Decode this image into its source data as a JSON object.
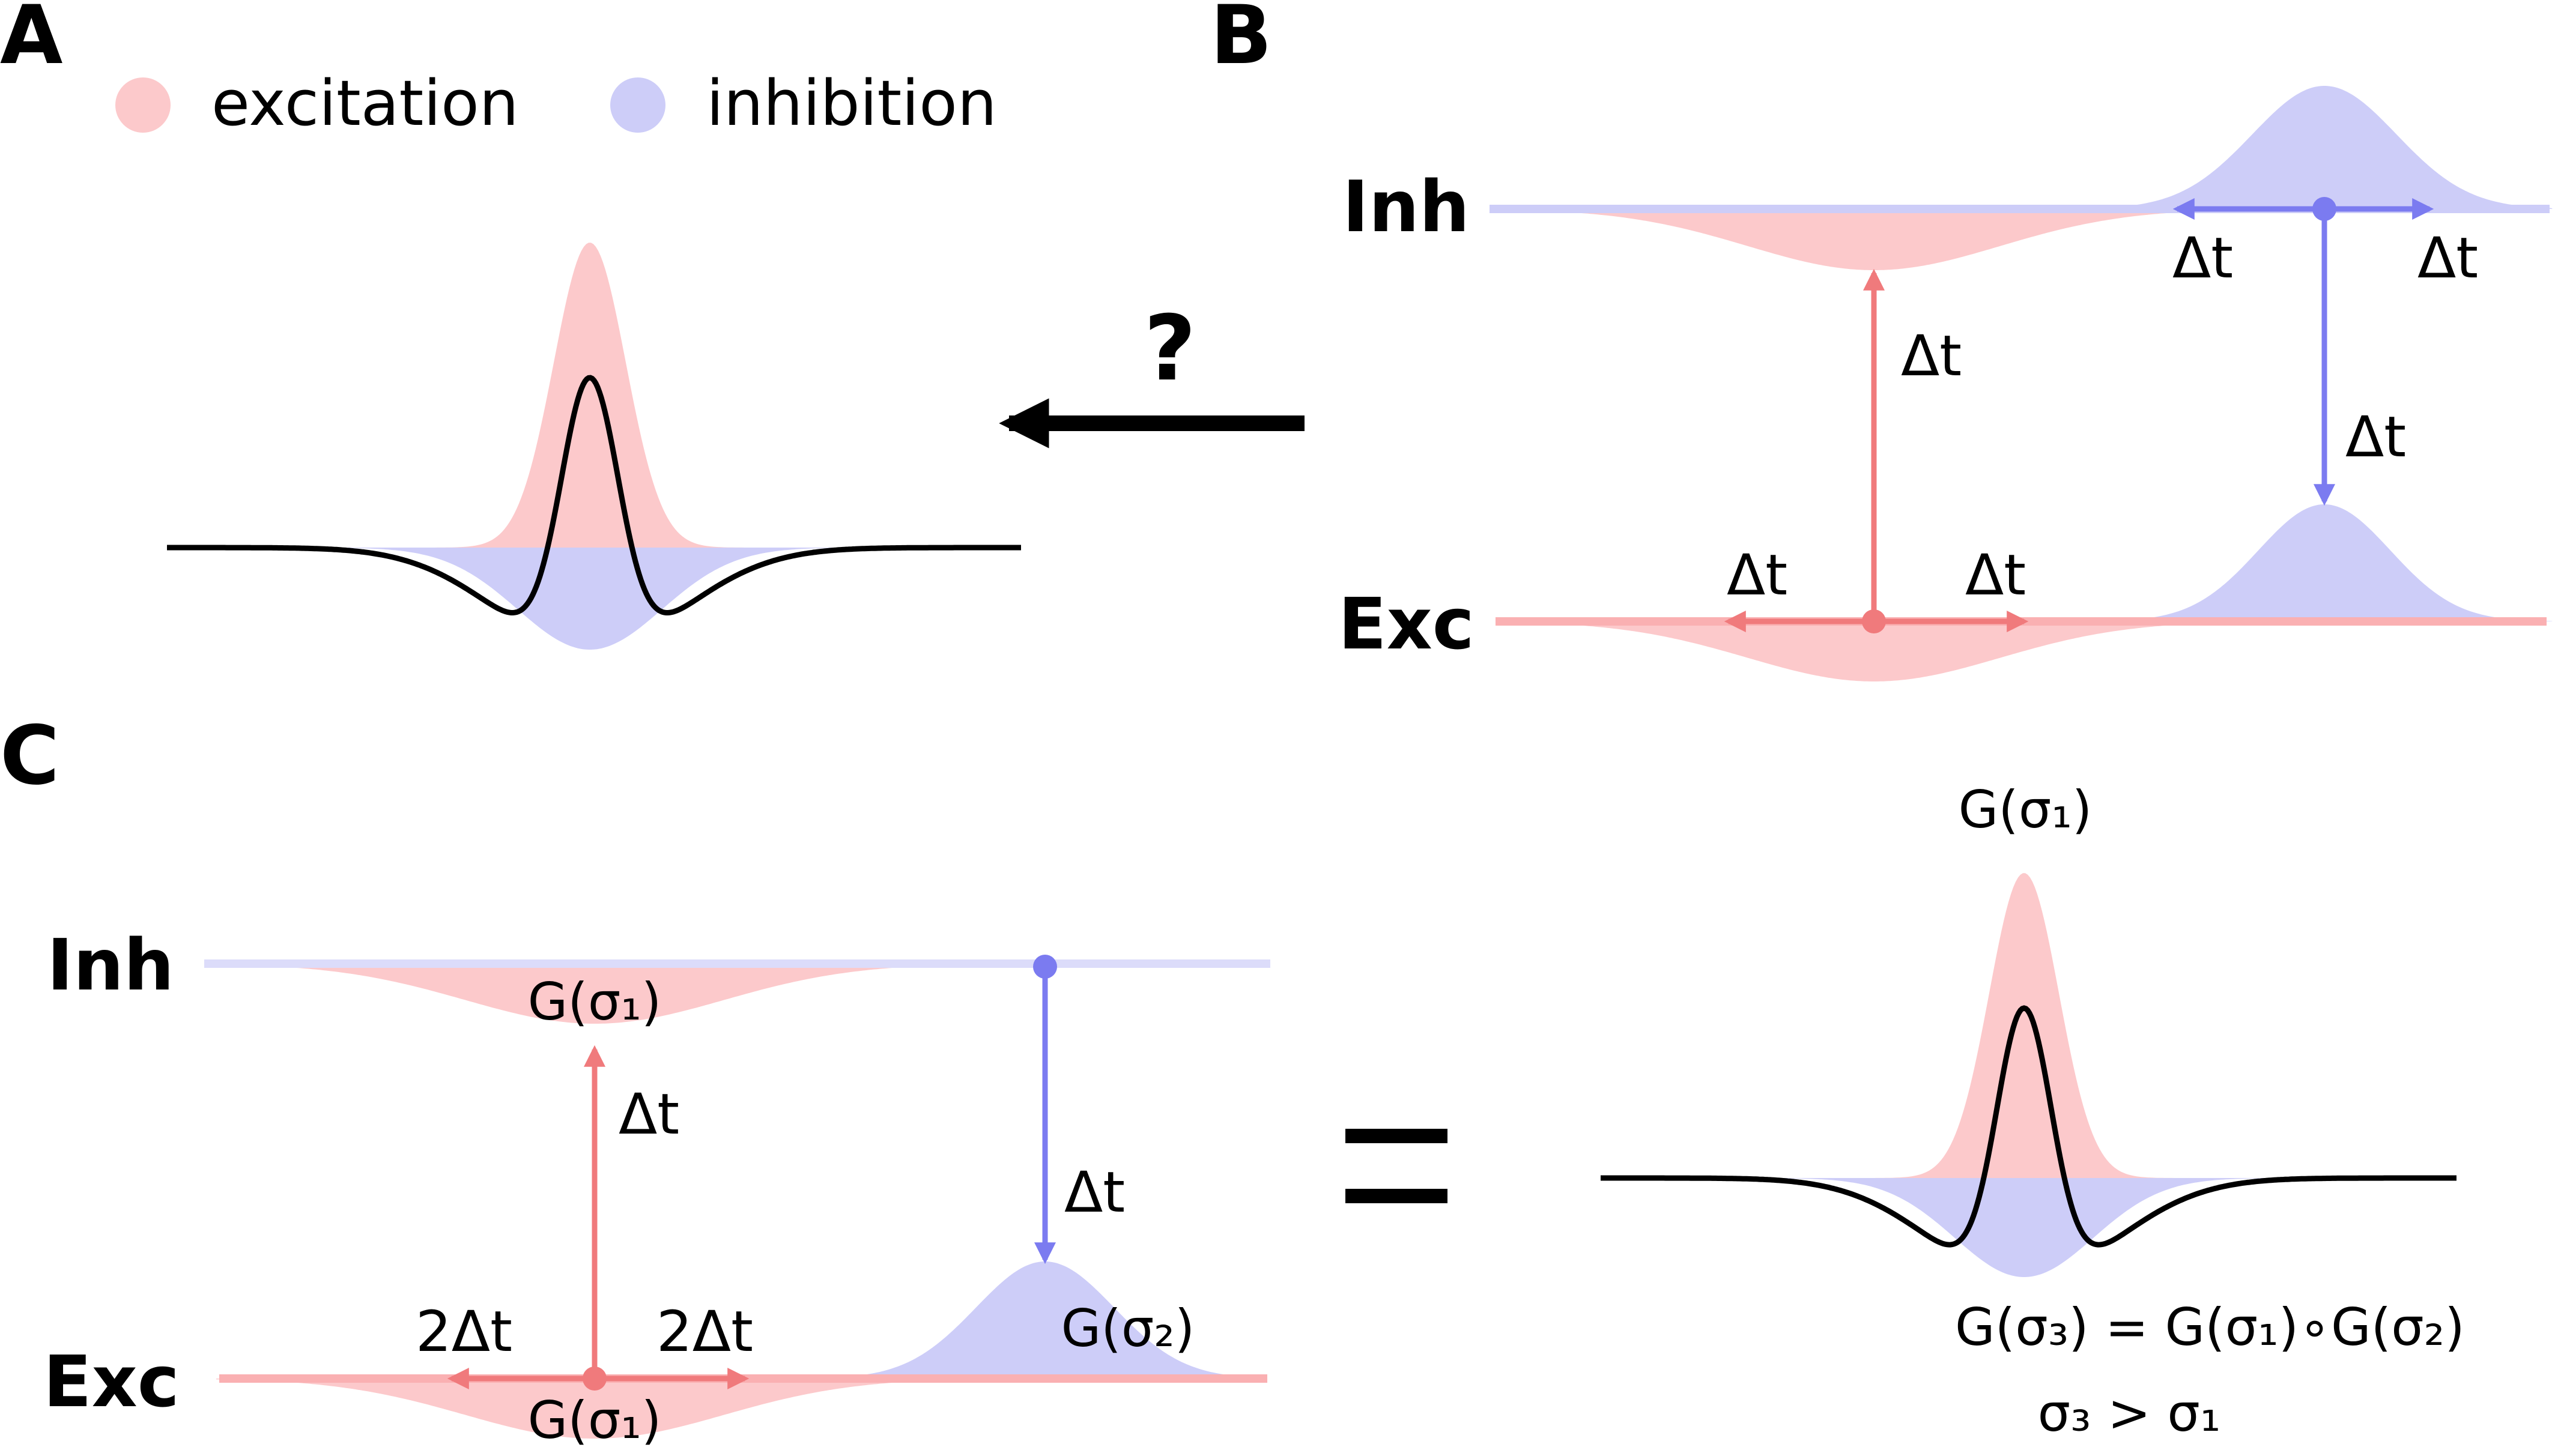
{
  "panels": {
    "a": "A",
    "b": "B",
    "c": "C"
  },
  "legend": {
    "excitation": "excitation",
    "inhibition": "inhibition"
  },
  "layers": {
    "inh": "Inh",
    "exc": "Exc"
  },
  "labels": {
    "dt": "Δt",
    "two_dt": "2Δt",
    "question": "?",
    "g1": "G(σ₁)",
    "g2": "G(σ₂)",
    "equation": "G(σ₃) = G(σ₁)∘G(σ₂)",
    "inequality": "σ₃ > σ₁"
  },
  "colors": {
    "excitation_fill": "#fcc9cb",
    "inhibition_fill": "#cdcdf8",
    "excitation_line": "#f07a7c",
    "inhibition_line": "#7b7bf0",
    "profile": "#000000"
  }
}
